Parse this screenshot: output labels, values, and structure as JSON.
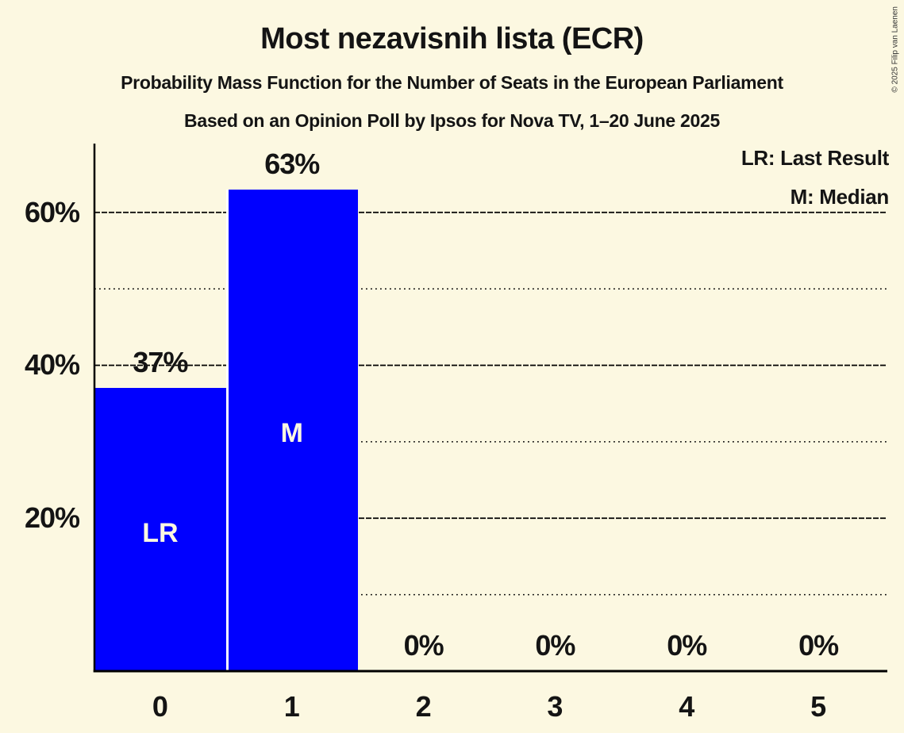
{
  "header": {
    "title": "Most nezavisnih lista (ECR)",
    "subtitle": "Probability Mass Function for the Number of Seats in the European Parliament",
    "poll_line": "Based on an Opinion Poll by Ipsos for Nova TV, 1–20 June 2025"
  },
  "copyright": "© 2025 Filip van Laenen",
  "legend": {
    "last_result": "LR: Last Result",
    "median": "M: Median"
  },
  "colors": {
    "background": "#FCF8E1",
    "bar": "#0000FF",
    "text": "#141414",
    "grid": "#000000",
    "bar_text": "#FCF8E1",
    "bar_separator": "#FFFFFF"
  },
  "chart_data": {
    "type": "bar",
    "title": "Most nezavisnih lista (ECR)",
    "categories": [
      "0",
      "1",
      "2",
      "3",
      "4",
      "5"
    ],
    "values": [
      37,
      63,
      0,
      0,
      0,
      0
    ],
    "value_labels": [
      "37%",
      "63%",
      "0%",
      "0%",
      "0%",
      "0%"
    ],
    "bar_annotations": [
      "LR",
      "M",
      "",
      "",
      "",
      ""
    ],
    "annotation_meanings": {
      "LR": "Last Result",
      "M": "Median"
    },
    "yticks": [
      {
        "value": 20,
        "label": "20%"
      },
      {
        "value": 40,
        "label": "40%"
      },
      {
        "value": 60,
        "label": "60%"
      }
    ],
    "solid_gridlines": [
      20,
      40,
      60
    ],
    "dotted_gridlines": [
      10,
      30,
      50
    ],
    "ylim": [
      0,
      69
    ],
    "grid": true,
    "legend_position": "top-right"
  }
}
